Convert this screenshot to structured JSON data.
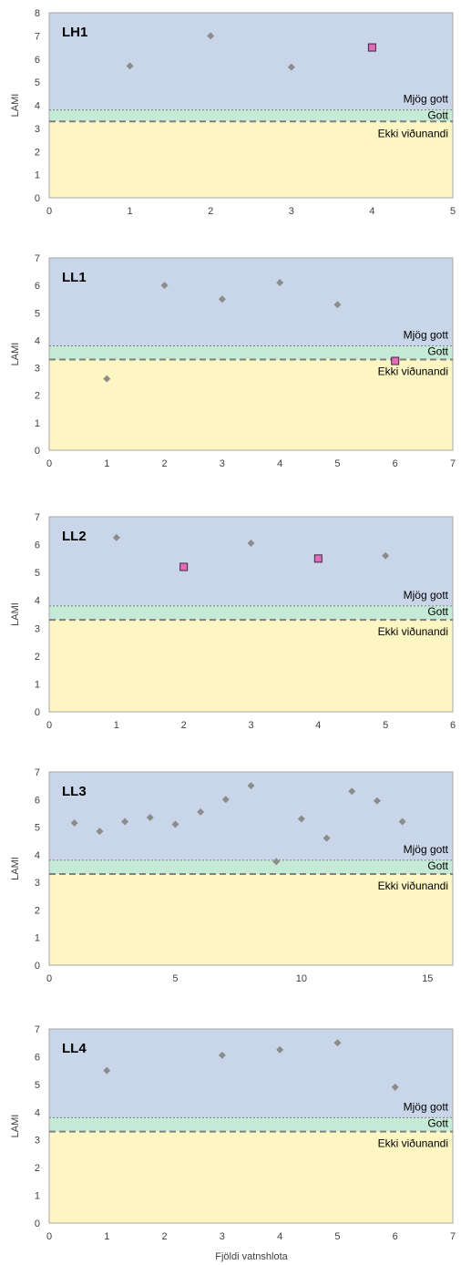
{
  "colors": {
    "band_very_good": "#c9d6ea",
    "band_good": "#c5ead5",
    "band_poor": "#fdf6c3",
    "diamond": "#8c8c8c",
    "square_fill": "#e36ab9",
    "square_stroke": "#3a2a3a",
    "threshold_line": "#808080"
  },
  "x_axis_label": "Fjöldi vatnshlota",
  "chart_data": [
    {
      "type": "scatter",
      "title": "LH1",
      "ylabel": "LAMI",
      "xlim": [
        0,
        5
      ],
      "ylim": [
        0,
        8
      ],
      "x_ticks": [
        0,
        1,
        2,
        3,
        4,
        5
      ],
      "y_ticks": [
        0,
        1,
        2,
        3,
        4,
        5,
        6,
        7,
        8
      ],
      "thresholds": {
        "good": 3.3,
        "very_good": 3.8
      },
      "zone_labels": [
        "Mjög gott",
        "Gott",
        "Ekki viðunandi"
      ],
      "series": [
        {
          "marker": "diamond",
          "points": [
            [
              1,
              5.7
            ],
            [
              2,
              7.0
            ],
            [
              3,
              5.65
            ]
          ]
        },
        {
          "marker": "square",
          "points": [
            [
              4,
              6.5
            ]
          ]
        }
      ]
    },
    {
      "type": "scatter",
      "title": "LL1",
      "ylabel": "LAMI",
      "xlim": [
        0,
        7
      ],
      "ylim": [
        0,
        7
      ],
      "x_ticks": [
        0,
        1,
        2,
        3,
        4,
        5,
        6,
        7
      ],
      "y_ticks": [
        0,
        1,
        2,
        3,
        4,
        5,
        6,
        7
      ],
      "thresholds": {
        "good": 3.3,
        "very_good": 3.8
      },
      "zone_labels": [
        "Mjög gott",
        "Gott",
        "Ekki viðunandi"
      ],
      "series": [
        {
          "marker": "diamond",
          "points": [
            [
              1,
              2.6
            ],
            [
              2,
              6.0
            ],
            [
              3,
              5.5
            ],
            [
              4,
              6.1
            ],
            [
              5,
              5.3
            ]
          ]
        },
        {
          "marker": "square",
          "points": [
            [
              6,
              3.25
            ]
          ]
        }
      ]
    },
    {
      "type": "scatter",
      "title": "LL2",
      "ylabel": "LAMI",
      "xlim": [
        0,
        6
      ],
      "ylim": [
        0,
        7
      ],
      "x_ticks": [
        0,
        1,
        2,
        3,
        4,
        5,
        6
      ],
      "y_ticks": [
        0,
        1,
        2,
        3,
        4,
        5,
        6,
        7
      ],
      "thresholds": {
        "good": 3.3,
        "very_good": 3.8
      },
      "zone_labels": [
        "Mjög gott",
        "Gott",
        "Ekki viðunandi"
      ],
      "series": [
        {
          "marker": "diamond",
          "points": [
            [
              1,
              6.25
            ],
            [
              3,
              6.05
            ],
            [
              5,
              5.6
            ]
          ]
        },
        {
          "marker": "square",
          "points": [
            [
              2,
              5.2
            ],
            [
              4,
              5.5
            ]
          ]
        }
      ]
    },
    {
      "type": "scatter",
      "title": "LL3",
      "ylabel": "LAMI",
      "xlim": [
        0,
        16
      ],
      "ylim": [
        0,
        7
      ],
      "x_ticks": [
        0,
        5,
        10,
        15
      ],
      "y_ticks": [
        0,
        1,
        2,
        3,
        4,
        5,
        6,
        7
      ],
      "thresholds": {
        "good": 3.3,
        "very_good": 3.8
      },
      "zone_labels": [
        "Mjög gott",
        "Gott",
        "Ekki viðunandi"
      ],
      "series": [
        {
          "marker": "diamond",
          "points": [
            [
              1,
              5.15
            ],
            [
              2,
              4.85
            ],
            [
              3,
              5.2
            ],
            [
              4,
              5.35
            ],
            [
              5,
              5.1
            ],
            [
              6,
              5.55
            ],
            [
              7,
              6.0
            ],
            [
              8,
              6.5
            ],
            [
              9,
              3.75
            ],
            [
              10,
              5.3
            ],
            [
              11,
              4.6
            ],
            [
              12,
              6.3
            ],
            [
              13,
              5.95
            ],
            [
              14,
              5.2
            ]
          ]
        }
      ]
    },
    {
      "type": "scatter",
      "title": "LL4",
      "ylabel": "LAMI",
      "xlabel": "Fjöldi vatnshlota",
      "xlim": [
        0,
        7
      ],
      "ylim": [
        0,
        7
      ],
      "x_ticks": [
        0,
        1,
        2,
        3,
        4,
        5,
        6,
        7
      ],
      "y_ticks": [
        0,
        1,
        2,
        3,
        4,
        5,
        6,
        7
      ],
      "thresholds": {
        "good": 3.3,
        "very_good": 3.8
      },
      "zone_labels": [
        "Mjög gott",
        "Gott",
        "Ekki viðunandi"
      ],
      "series": [
        {
          "marker": "diamond",
          "points": [
            [
              1,
              5.5
            ],
            [
              3,
              6.05
            ],
            [
              4,
              6.25
            ],
            [
              5,
              6.5
            ],
            [
              6,
              4.9
            ]
          ]
        }
      ]
    }
  ]
}
